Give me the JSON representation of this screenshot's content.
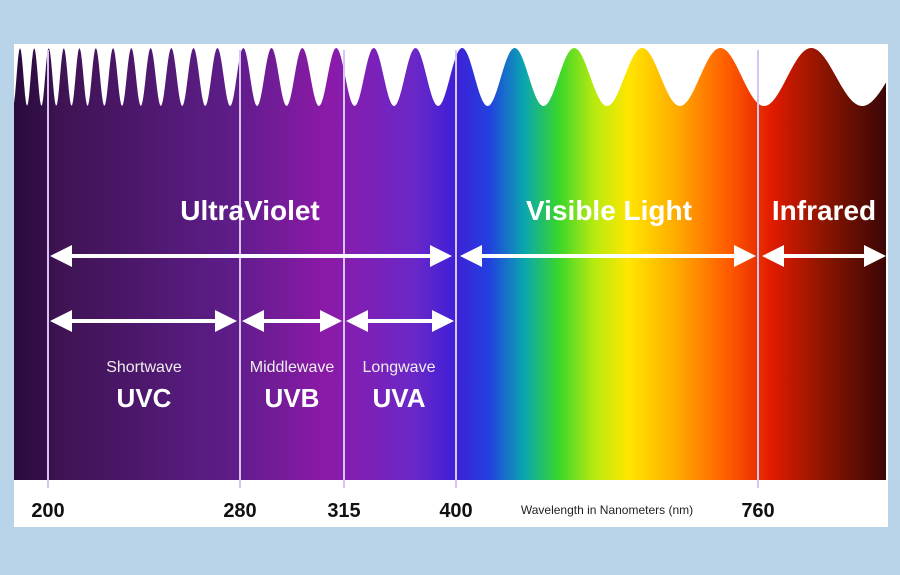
{
  "regions": {
    "ultraviolet": "UltraViolet",
    "visible": "Visible Light",
    "infrared": "Infrared"
  },
  "bands": [
    {
      "sub": "Shortwave",
      "name": "UVC"
    },
    {
      "sub": "Middlewave",
      "name": "UVB"
    },
    {
      "sub": "Longwave",
      "name": "UVA"
    }
  ],
  "ticks": [
    "200",
    "280",
    "315",
    "400",
    "760"
  ],
  "axis_title": "Wavelength in Nanometers (nm)",
  "colors": {
    "background": "#b9d3e8",
    "arrow": "#ffffff",
    "divider": "#d9c4f0",
    "axis_text": "#111111"
  }
}
